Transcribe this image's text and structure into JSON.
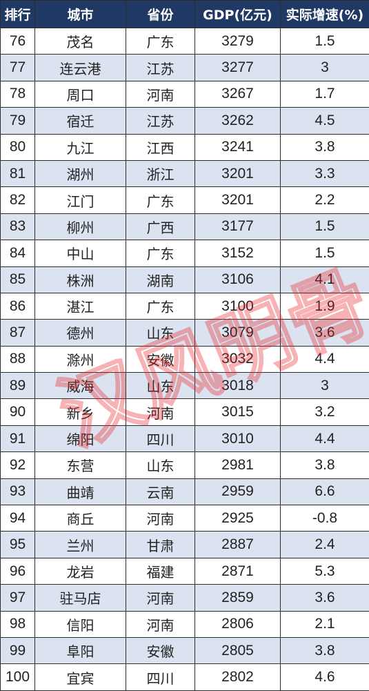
{
  "columns": {
    "rank": "排行",
    "city": "城市",
    "province": "省份",
    "gdp": "GDP(亿元)",
    "growth": "实际增速(%)"
  },
  "rows": [
    {
      "rank": "76",
      "city": "茂名",
      "province": "广东",
      "gdp": "3279",
      "growth": "1.5"
    },
    {
      "rank": "77",
      "city": "连云港",
      "province": "江苏",
      "gdp": "3277",
      "growth": "3"
    },
    {
      "rank": "78",
      "city": "周口",
      "province": "河南",
      "gdp": "3267",
      "growth": "1.7"
    },
    {
      "rank": "79",
      "city": "宿迁",
      "province": "江苏",
      "gdp": "3262",
      "growth": "4.5"
    },
    {
      "rank": "80",
      "city": "九江",
      "province": "江西",
      "gdp": "3241",
      "growth": "3.8"
    },
    {
      "rank": "81",
      "city": "湖州",
      "province": "浙江",
      "gdp": "3201",
      "growth": "3.3"
    },
    {
      "rank": "82",
      "city": "江门",
      "province": "广东",
      "gdp": "3201",
      "growth": "2.2"
    },
    {
      "rank": "83",
      "city": "柳州",
      "province": "广西",
      "gdp": "3177",
      "growth": "1.5"
    },
    {
      "rank": "84",
      "city": "中山",
      "province": "广东",
      "gdp": "3152",
      "growth": "1.5"
    },
    {
      "rank": "85",
      "city": "株洲",
      "province": "湖南",
      "gdp": "3106",
      "growth": "4.1"
    },
    {
      "rank": "86",
      "city": "湛江",
      "province": "广东",
      "gdp": "3100",
      "growth": "1.9"
    },
    {
      "rank": "87",
      "city": "德州",
      "province": "山东",
      "gdp": "3079",
      "growth": "3.6"
    },
    {
      "rank": "88",
      "city": "滁州",
      "province": "安徽",
      "gdp": "3032",
      "growth": "4.4"
    },
    {
      "rank": "89",
      "city": "威海",
      "province": "山东",
      "gdp": "3018",
      "growth": "3"
    },
    {
      "rank": "90",
      "city": "新乡",
      "province": "河南",
      "gdp": "3015",
      "growth": "3.2"
    },
    {
      "rank": "91",
      "city": "绵阳",
      "province": "四川",
      "gdp": "3010",
      "growth": "4.4"
    },
    {
      "rank": "92",
      "city": "东营",
      "province": "山东",
      "gdp": "2981",
      "growth": "3.8"
    },
    {
      "rank": "93",
      "city": "曲靖",
      "province": "云南",
      "gdp": "2959",
      "growth": "6.6"
    },
    {
      "rank": "94",
      "city": "商丘",
      "province": "河南",
      "gdp": "2925",
      "growth": "-0.8"
    },
    {
      "rank": "95",
      "city": "兰州",
      "province": "甘肃",
      "gdp": "2887",
      "growth": "2.4"
    },
    {
      "rank": "96",
      "city": "龙岩",
      "province": "福建",
      "gdp": "2871",
      "growth": "5.3"
    },
    {
      "rank": "97",
      "city": "驻马店",
      "province": "河南",
      "gdp": "2859",
      "growth": "3.6"
    },
    {
      "rank": "98",
      "city": "信阳",
      "province": "河南",
      "gdp": "2806",
      "growth": "2.1"
    },
    {
      "rank": "99",
      "city": "阜阳",
      "province": "安徽",
      "gdp": "2805",
      "growth": "3.8"
    },
    {
      "rank": "100",
      "city": "宜宾",
      "province": "四川",
      "gdp": "2802",
      "growth": "4.6"
    }
  ],
  "watermark": {
    "text": "汉风明骨",
    "color": "#e8262a"
  },
  "colors": {
    "header_bg": "#1f3864",
    "header_text": "#ffffff",
    "stripe_row": "#dce3f0",
    "border": "#2b2b2b"
  }
}
